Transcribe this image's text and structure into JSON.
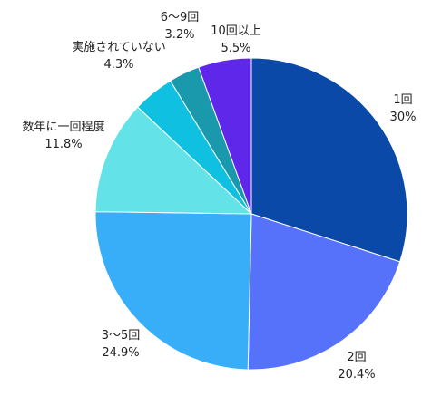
{
  "chart_data": {
    "type": "pie",
    "categories": [
      "1回",
      "2回",
      "3～5回",
      "数年に一回程度",
      "実施されていない",
      "6～9回",
      "10回以上"
    ],
    "values": [
      30,
      20.4,
      24.9,
      11.8,
      4.3,
      3.2,
      5.5
    ],
    "value_labels": [
      "30%",
      "20.4%",
      "24.9%",
      "11.8%",
      "4.3%",
      "3.2%",
      "5.5%"
    ],
    "colors": [
      "#0a49a8",
      "#5672fb",
      "#38aef9",
      "#63e3e8",
      "#10c0e0",
      "#1a98ac",
      "#5f27ea"
    ],
    "start_angle_deg": 0,
    "direction": "clockwise",
    "legend": "none"
  }
}
